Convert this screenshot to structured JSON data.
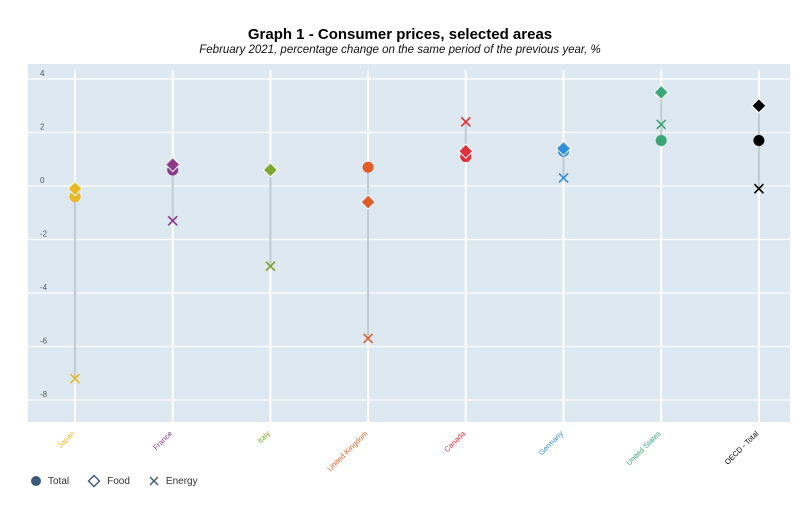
{
  "header": {
    "title": "Graph 1 - Consumer prices, selected areas",
    "subtitle": "February 2021, percentage change on the same period of the previous year, %"
  },
  "legend": {
    "total_label": "Total",
    "food_label": "Food",
    "energy_label": "Energy"
  },
  "chart_data": {
    "type": "scatter",
    "title": "Graph 1 - Consumer prices, selected areas",
    "subtitle": "February 2021, percentage change on the same period of the previous year, %",
    "xlabel": "",
    "ylabel": "",
    "ylim": [
      -8.5,
      4.5
    ],
    "yticks": [
      4,
      2,
      0,
      -2,
      -4,
      -6,
      -8
    ],
    "grid": true,
    "legend_position": "bottom-left",
    "categories": [
      "Japan",
      "France",
      "Italy",
      "United Kingdom",
      "Canada",
      "Germany",
      "United States",
      "OECD - Total"
    ],
    "colors": [
      "#e8b923",
      "#8e3a8a",
      "#7ea630",
      "#e05d2a",
      "#e0303a",
      "#2f8fd8",
      "#3aa676",
      "#000000"
    ],
    "series": [
      {
        "name": "Total",
        "marker": "circle",
        "values": [
          -0.4,
          0.6,
          0.6,
          0.7,
          1.1,
          1.3,
          1.7,
          1.7
        ]
      },
      {
        "name": "Food",
        "marker": "diamond",
        "values": [
          -0.1,
          0.8,
          0.6,
          -0.6,
          1.3,
          1.4,
          3.5,
          3.0
        ]
      },
      {
        "name": "Energy",
        "marker": "cross",
        "values": [
          -7.2,
          -1.3,
          -3.0,
          -5.7,
          2.4,
          0.3,
          2.3,
          -0.1
        ]
      }
    ]
  }
}
